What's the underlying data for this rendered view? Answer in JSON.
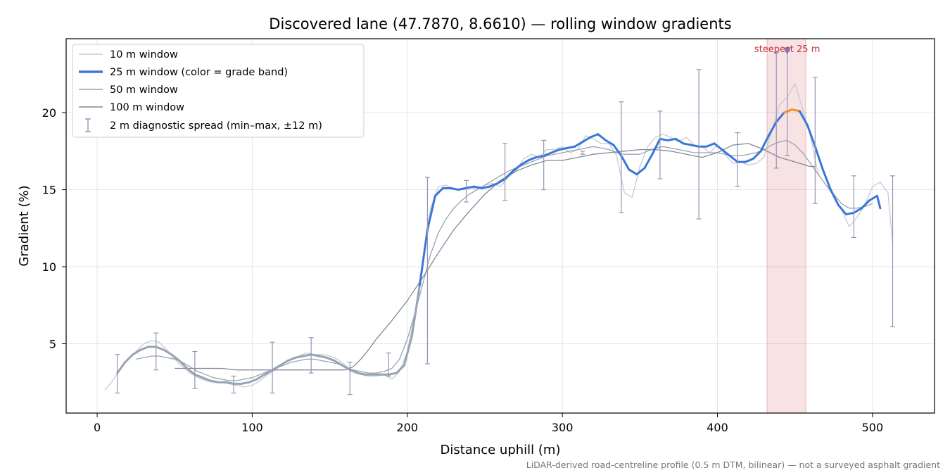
{
  "chart_data": {
    "type": "line",
    "title": "Discovered lane (47.7870, 8.6610) — rolling window gradients",
    "xlabel": "Distance uphill (m)",
    "ylabel": "Gradient (%)",
    "xlim": [
      -20,
      540
    ],
    "ylim": [
      0.5,
      24.8
    ],
    "xticks": [
      0,
      100,
      200,
      300,
      400,
      500
    ],
    "yticks": [
      5,
      10,
      15,
      20
    ],
    "grid": true,
    "legend_placement": "top-left",
    "footnote": "LiDAR-derived road-centreline profile (0.5 m DTM, bilinear) — not a surveyed asphalt gradient",
    "series": [
      {
        "name": "10 m window",
        "color": "#c5cad6",
        "x": [
          5,
          10,
          15,
          20,
          25,
          30,
          35,
          40,
          45,
          50,
          55,
          60,
          65,
          70,
          75,
          80,
          85,
          90,
          95,
          100,
          105,
          110,
          115,
          120,
          125,
          130,
          135,
          140,
          145,
          150,
          155,
          160,
          165,
          170,
          175,
          180,
          185,
          190,
          195,
          200,
          205,
          210,
          215,
          220,
          225,
          230,
          235,
          240,
          245,
          250,
          255,
          260,
          265,
          270,
          275,
          280,
          285,
          290,
          295,
          300,
          305,
          310,
          315,
          320,
          325,
          330,
          335,
          340,
          345,
          350,
          355,
          360,
          365,
          370,
          375,
          380,
          385,
          390,
          395,
          400,
          405,
          410,
          415,
          420,
          425,
          430,
          435,
          440,
          445,
          450,
          455,
          460,
          465,
          470,
          475,
          480,
          485,
          490,
          495,
          500,
          505,
          510,
          513
        ],
        "y": [
          2.0,
          2.6,
          3.4,
          4.0,
          4.5,
          5.0,
          5.2,
          5.1,
          4.6,
          4.0,
          3.5,
          3.1,
          2.8,
          2.6,
          2.5,
          2.5,
          2.4,
          2.3,
          2.2,
          2.3,
          2.6,
          3.0,
          3.3,
          3.7,
          4.0,
          4.2,
          4.4,
          4.3,
          4.3,
          4.2,
          4.0,
          3.6,
          3.2,
          3.0,
          2.9,
          2.9,
          3.0,
          2.7,
          3.2,
          4.5,
          7.0,
          10.5,
          13.8,
          15.2,
          15.3,
          15.0,
          15.1,
          15.2,
          15.0,
          15.3,
          15.4,
          15.2,
          15.8,
          16.2,
          17.0,
          17.3,
          17.1,
          17.6,
          17.6,
          17.8,
          17.4,
          17.6,
          18.5,
          18.3,
          18.0,
          18.0,
          17.2,
          14.8,
          14.5,
          16.5,
          17.8,
          18.4,
          18.6,
          18.4,
          18.1,
          18.4,
          17.9,
          17.8,
          17.4,
          17.9,
          17.3,
          16.7,
          16.8,
          16.6,
          16.7,
          17.1,
          18.8,
          20.5,
          21.0,
          21.9,
          20.2,
          18.5,
          16.0,
          15.3,
          14.6,
          13.7,
          12.6,
          13.2,
          14.0,
          15.2,
          15.5,
          14.8,
          11.5
        ]
      },
      {
        "name": "25 m window (color = grade band)",
        "color": "#3a78d6",
        "highlight_color": "#f0901a",
        "highlight_range": [
          443,
          452
        ],
        "low_grade_color": "#98a4b3",
        "low_grade_threshold": 10,
        "x": [
          13,
          18,
          23,
          28,
          33,
          38,
          43,
          48,
          53,
          58,
          63,
          68,
          73,
          78,
          83,
          88,
          93,
          98,
          103,
          108,
          113,
          118,
          123,
          128,
          133,
          138,
          143,
          148,
          153,
          158,
          163,
          168,
          173,
          178,
          183,
          188,
          193,
          198,
          203,
          208,
          213,
          218,
          223,
          228,
          233,
          238,
          243,
          248,
          253,
          258,
          263,
          268,
          273,
          278,
          283,
          288,
          293,
          298,
          303,
          308,
          313,
          318,
          323,
          328,
          333,
          338,
          343,
          348,
          353,
          358,
          363,
          368,
          373,
          378,
          383,
          388,
          393,
          398,
          403,
          408,
          413,
          418,
          423,
          428,
          433,
          438,
          443,
          448,
          453,
          458,
          463,
          468,
          473,
          478,
          483,
          488,
          493,
          498,
          503,
          505
        ],
        "y": [
          3.1,
          3.8,
          4.3,
          4.6,
          4.8,
          4.8,
          4.6,
          4.3,
          3.9,
          3.4,
          3.0,
          2.8,
          2.6,
          2.5,
          2.5,
          2.4,
          2.4,
          2.5,
          2.7,
          3.0,
          3.3,
          3.6,
          3.9,
          4.1,
          4.2,
          4.3,
          4.2,
          4.1,
          3.9,
          3.6,
          3.3,
          3.1,
          3.0,
          3.0,
          3.0,
          3.0,
          3.1,
          3.6,
          5.5,
          8.8,
          12.4,
          14.6,
          15.1,
          15.1,
          15.0,
          15.1,
          15.2,
          15.1,
          15.2,
          15.4,
          15.7,
          16.2,
          16.6,
          16.9,
          17.1,
          17.2,
          17.4,
          17.6,
          17.7,
          17.8,
          18.1,
          18.4,
          18.6,
          18.2,
          17.9,
          17.2,
          16.3,
          16.0,
          16.4,
          17.3,
          18.3,
          18.2,
          18.3,
          18.0,
          17.9,
          17.8,
          17.8,
          18.0,
          17.6,
          17.2,
          16.8,
          16.8,
          17.0,
          17.5,
          18.5,
          19.4,
          20.0,
          20.2,
          20.1,
          19.2,
          17.8,
          16.3,
          15.0,
          14.0,
          13.4,
          13.5,
          13.8,
          14.3,
          14.6,
          13.8
        ]
      },
      {
        "name": "50 m window",
        "color": "#9aa3b2",
        "x": [
          25,
          30,
          35,
          40,
          45,
          50,
          55,
          60,
          65,
          70,
          75,
          80,
          85,
          90,
          95,
          100,
          105,
          110,
          115,
          120,
          125,
          130,
          135,
          140,
          145,
          150,
          155,
          160,
          165,
          170,
          175,
          180,
          185,
          190,
          195,
          200,
          205,
          210,
          215,
          220,
          225,
          230,
          235,
          240,
          245,
          250,
          255,
          260,
          265,
          270,
          275,
          280,
          285,
          290,
          295,
          300,
          305,
          310,
          315,
          320,
          325,
          330,
          335,
          340,
          345,
          350,
          355,
          360,
          365,
          370,
          375,
          380,
          385,
          390,
          395,
          400,
          405,
          410,
          415,
          420,
          425,
          430,
          435,
          440,
          445,
          450,
          455,
          460,
          465,
          470,
          475,
          480,
          485,
          490,
          495,
          500
        ],
        "y": [
          4.0,
          4.1,
          4.2,
          4.2,
          4.1,
          4.0,
          3.8,
          3.5,
          3.2,
          3.0,
          2.8,
          2.7,
          2.6,
          2.6,
          2.7,
          2.8,
          3.0,
          3.2,
          3.4,
          3.6,
          3.8,
          3.9,
          4.0,
          4.0,
          3.9,
          3.8,
          3.7,
          3.5,
          3.3,
          3.2,
          3.1,
          3.1,
          3.2,
          3.4,
          4.0,
          5.3,
          7.0,
          8.9,
          10.8,
          12.2,
          13.1,
          13.8,
          14.3,
          14.7,
          15.0,
          15.3,
          15.6,
          15.9,
          16.2,
          16.4,
          16.6,
          16.8,
          17.0,
          17.2,
          17.3,
          17.4,
          17.5,
          17.6,
          17.7,
          17.8,
          17.7,
          17.6,
          17.4,
          17.3,
          17.3,
          17.3,
          17.5,
          17.7,
          17.8,
          17.7,
          17.6,
          17.5,
          17.4,
          17.4,
          17.4,
          17.4,
          17.3,
          17.2,
          17.2,
          17.3,
          17.4,
          17.6,
          17.9,
          18.1,
          18.2,
          17.9,
          17.4,
          16.7,
          16.0,
          15.3,
          14.7,
          14.1,
          13.8,
          13.8,
          13.9,
          14.1
        ]
      },
      {
        "name": "100 m window",
        "color": "#808896",
        "x": [
          50,
          60,
          70,
          80,
          90,
          100,
          110,
          120,
          130,
          140,
          150,
          160,
          165,
          170,
          175,
          180,
          190,
          200,
          210,
          220,
          230,
          240,
          250,
          260,
          270,
          280,
          290,
          300,
          310,
          320,
          330,
          340,
          350,
          360,
          370,
          380,
          390,
          400,
          410,
          420,
          430,
          440,
          450,
          460,
          463
        ],
        "y": [
          3.4,
          3.4,
          3.4,
          3.4,
          3.3,
          3.3,
          3.3,
          3.3,
          3.3,
          3.3,
          3.3,
          3.3,
          3.5,
          4.0,
          4.6,
          5.3,
          6.5,
          7.8,
          9.3,
          10.9,
          12.4,
          13.6,
          14.7,
          15.6,
          16.2,
          16.6,
          16.9,
          16.9,
          17.1,
          17.3,
          17.4,
          17.5,
          17.6,
          17.6,
          17.5,
          17.3,
          17.1,
          17.4,
          17.9,
          18.0,
          17.6,
          17.1,
          16.8,
          16.5,
          16.5
        ]
      }
    ],
    "diagnostic_spread": {
      "name": "2 m diagnostic spread (min–max, ±12 m)",
      "color": "#9a93b5",
      "x": [
        13,
        38,
        63,
        88,
        113,
        138,
        163,
        188,
        213,
        238,
        263,
        288,
        313,
        338,
        363,
        388,
        413,
        438,
        445,
        463,
        488,
        513
      ],
      "low": [
        1.8,
        3.3,
        2.1,
        1.8,
        1.8,
        3.1,
        1.7,
        2.9,
        3.7,
        14.2,
        14.3,
        15.0,
        17.3,
        13.5,
        15.7,
        13.1,
        15.2,
        16.4,
        17.2,
        14.1,
        11.9,
        6.1
      ],
      "high": [
        4.3,
        5.7,
        4.5,
        2.9,
        5.1,
        5.4,
        3.8,
        4.4,
        15.8,
        15.6,
        18.0,
        18.2,
        17.5,
        20.7,
        20.1,
        22.8,
        18.7,
        23.9,
        24.0,
        22.3,
        15.9,
        15.9
      ]
    },
    "annotations": [
      {
        "text": "steepest 25 m",
        "color": "#c8343f",
        "band_x": [
          432,
          457
        ],
        "marker_x": 445,
        "marker_y": 24.0,
        "marker_color": "#8a6fa8"
      }
    ]
  }
}
